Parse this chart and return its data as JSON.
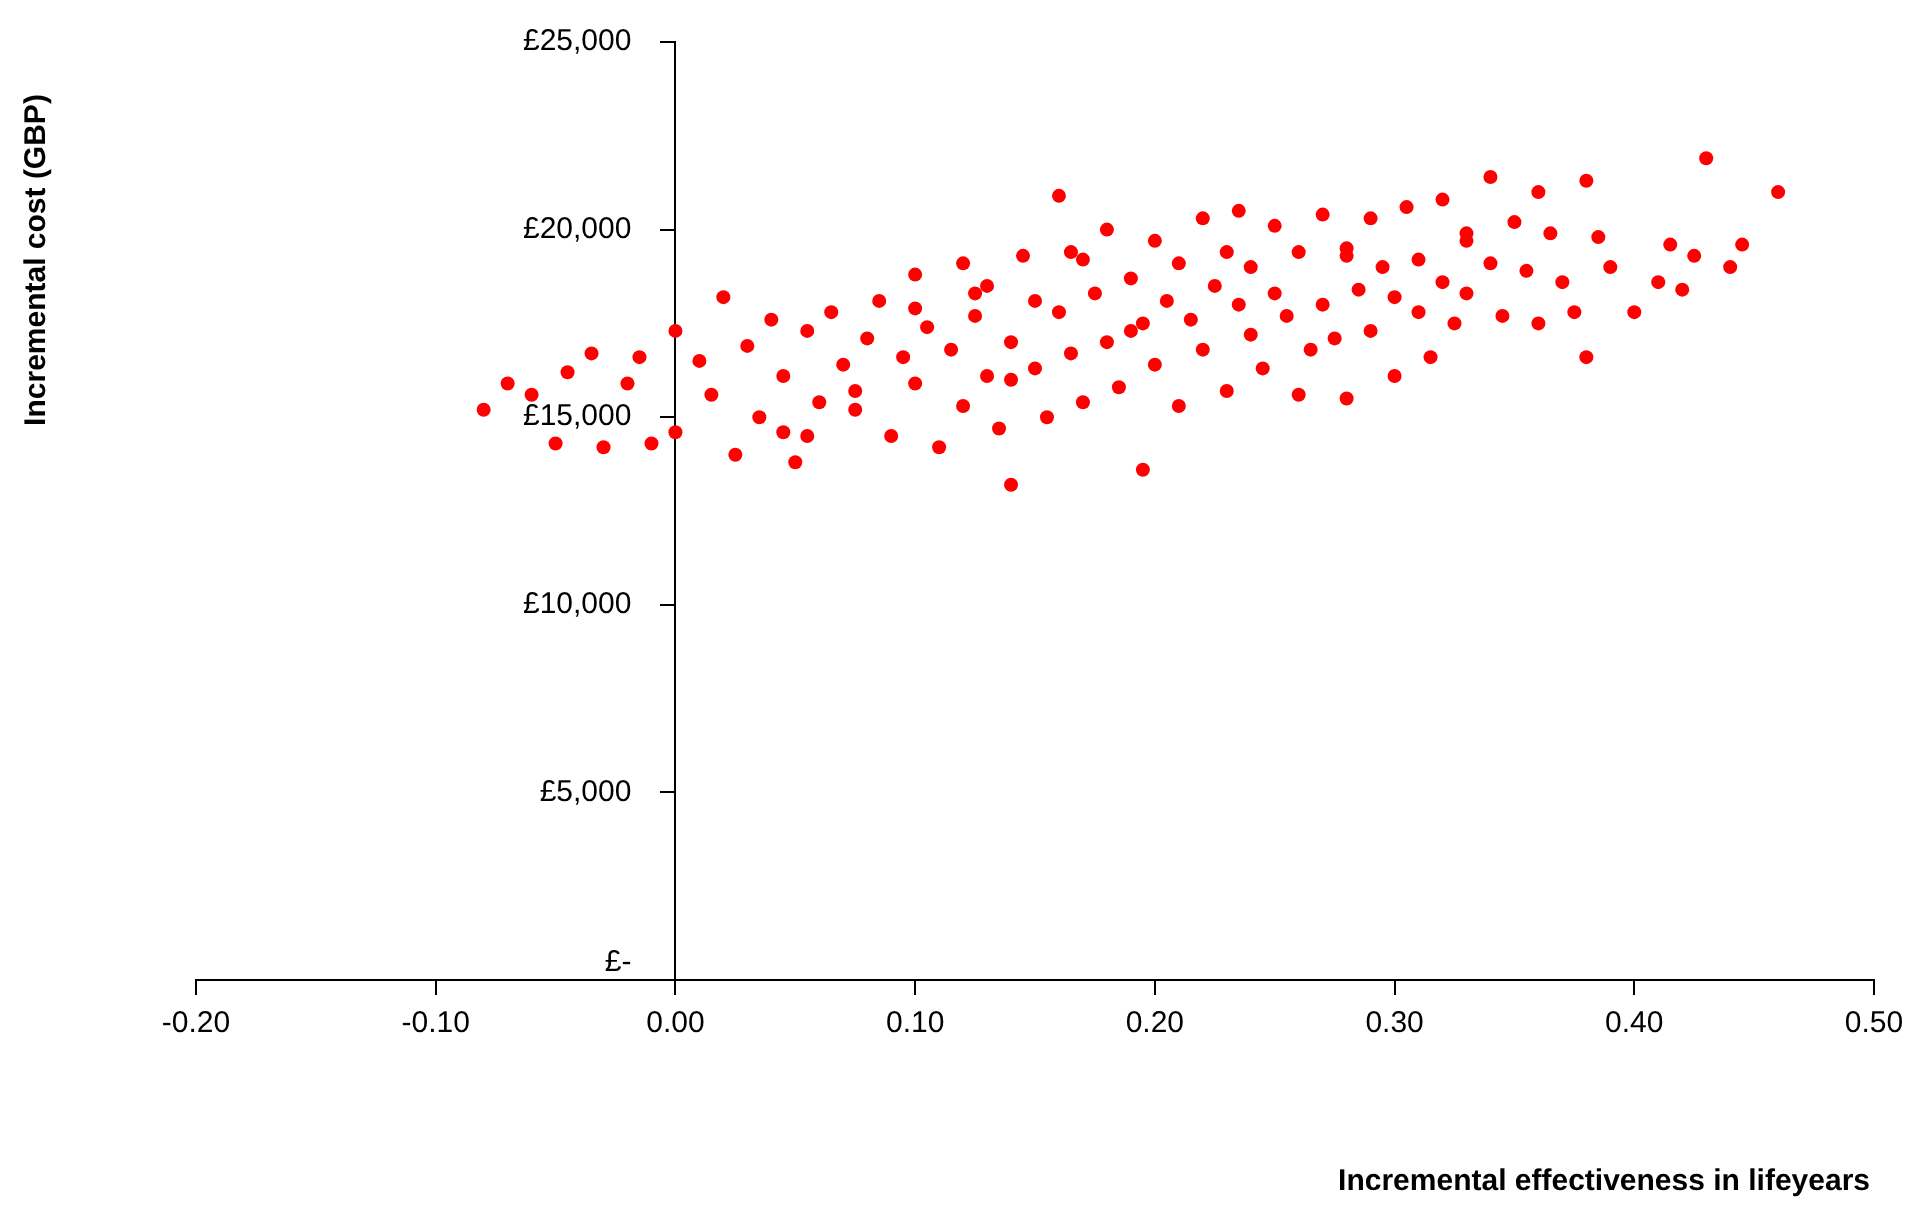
{
  "chart_data": {
    "type": "scatter",
    "xlabel": "Incremental effectiveness in lifeyears",
    "ylabel": "Incremental cost (GBP)",
    "xlim": [
      -0.2,
      0.5
    ],
    "xticks": [
      {
        "value": -0.2,
        "label": "-0.20"
      },
      {
        "value": -0.1,
        "label": "-0.10"
      },
      {
        "value": 0,
        "label": "0.00"
      },
      {
        "value": 0.1,
        "label": "0.10"
      },
      {
        "value": 0.2,
        "label": "0.20"
      },
      {
        "value": 0.3,
        "label": "0.30"
      },
      {
        "value": 0.4,
        "label": "0.40"
      },
      {
        "value": 0.5,
        "label": "0.50"
      }
    ],
    "ylim": [
      0,
      25000
    ],
    "yticks": [
      {
        "value": 0,
        "label": "£-"
      },
      {
        "value": 5000,
        "label": "£5,000"
      },
      {
        "value": 10000,
        "label": "£10,000"
      },
      {
        "value": 15000,
        "label": "£15,000"
      },
      {
        "value": 20000,
        "label": "£20,000"
      },
      {
        "value": 25000,
        "label": "£25,000"
      }
    ],
    "grid": false,
    "marker": "circle",
    "series": [
      {
        "color": "#ff0000",
        "x": [
          -0.08,
          -0.07,
          -0.06,
          -0.05,
          -0.045,
          -0.035,
          -0.03,
          -0.02,
          -0.015,
          -0.01,
          0.0,
          0.0,
          0.01,
          0.015,
          0.02,
          0.025,
          0.03,
          0.035,
          0.04,
          0.045,
          0.05,
          0.055,
          0.06,
          0.065,
          0.07,
          0.075,
          0.08,
          0.085,
          0.09,
          0.095,
          0.1,
          0.1,
          0.105,
          0.11,
          0.115,
          0.12,
          0.12,
          0.125,
          0.13,
          0.13,
          0.135,
          0.14,
          0.14,
          0.145,
          0.15,
          0.15,
          0.155,
          0.16,
          0.16,
          0.165,
          0.17,
          0.17,
          0.175,
          0.18,
          0.18,
          0.185,
          0.19,
          0.19,
          0.195,
          0.2,
          0.2,
          0.205,
          0.21,
          0.21,
          0.215,
          0.22,
          0.22,
          0.225,
          0.23,
          0.23,
          0.235,
          0.24,
          0.24,
          0.245,
          0.25,
          0.25,
          0.255,
          0.26,
          0.26,
          0.265,
          0.27,
          0.27,
          0.275,
          0.28,
          0.28,
          0.285,
          0.29,
          0.29,
          0.295,
          0.3,
          0.3,
          0.305,
          0.31,
          0.31,
          0.315,
          0.32,
          0.32,
          0.325,
          0.33,
          0.33,
          0.34,
          0.34,
          0.345,
          0.35,
          0.355,
          0.36,
          0.36,
          0.365,
          0.37,
          0.375,
          0.38,
          0.38,
          0.385,
          0.39,
          0.4,
          0.41,
          0.415,
          0.42,
          0.425,
          0.43,
          0.44,
          0.445,
          0.46,
          0.045,
          0.075,
          0.1,
          0.14,
          0.195,
          0.165,
          0.235,
          0.28,
          0.33,
          0.125,
          0.055
        ],
        "values": [
          15200,
          15900,
          15600,
          14300,
          16200,
          16700,
          14200,
          15900,
          16600,
          14300,
          14600,
          17300,
          16500,
          15600,
          18200,
          14000,
          16900,
          15000,
          17600,
          16100,
          13800,
          17300,
          15400,
          17800,
          16400,
          15200,
          17100,
          18100,
          14500,
          16600,
          15900,
          18800,
          17400,
          14200,
          16800,
          19100,
          15300,
          17700,
          16100,
          18500,
          14700,
          17000,
          13200,
          19300,
          16300,
          18100,
          15000,
          17800,
          20900,
          16700,
          19200,
          15400,
          18300,
          17000,
          20000,
          15800,
          18700,
          17300,
          13600,
          19700,
          16400,
          18100,
          15300,
          19100,
          17600,
          20300,
          16800,
          18500,
          15700,
          19400,
          20500,
          17200,
          19000,
          16300,
          18300,
          20100,
          17700,
          15600,
          19400,
          16800,
          20400,
          18000,
          17100,
          19300,
          15500,
          18400,
          20300,
          17300,
          19000,
          18200,
          16100,
          20600,
          17800,
          19200,
          16600,
          18600,
          20800,
          17500,
          19700,
          18300,
          21400,
          19100,
          17700,
          20200,
          18900,
          21000,
          17500,
          19900,
          18600,
          17800,
          21300,
          16600,
          19800,
          19000,
          17800,
          18600,
          19600,
          18400,
          19300,
          21900,
          19000,
          19600,
          21000,
          14600,
          15700,
          17900,
          16000,
          17500,
          19400,
          18000,
          19500,
          19900,
          18300,
          14500
        ]
      }
    ]
  }
}
